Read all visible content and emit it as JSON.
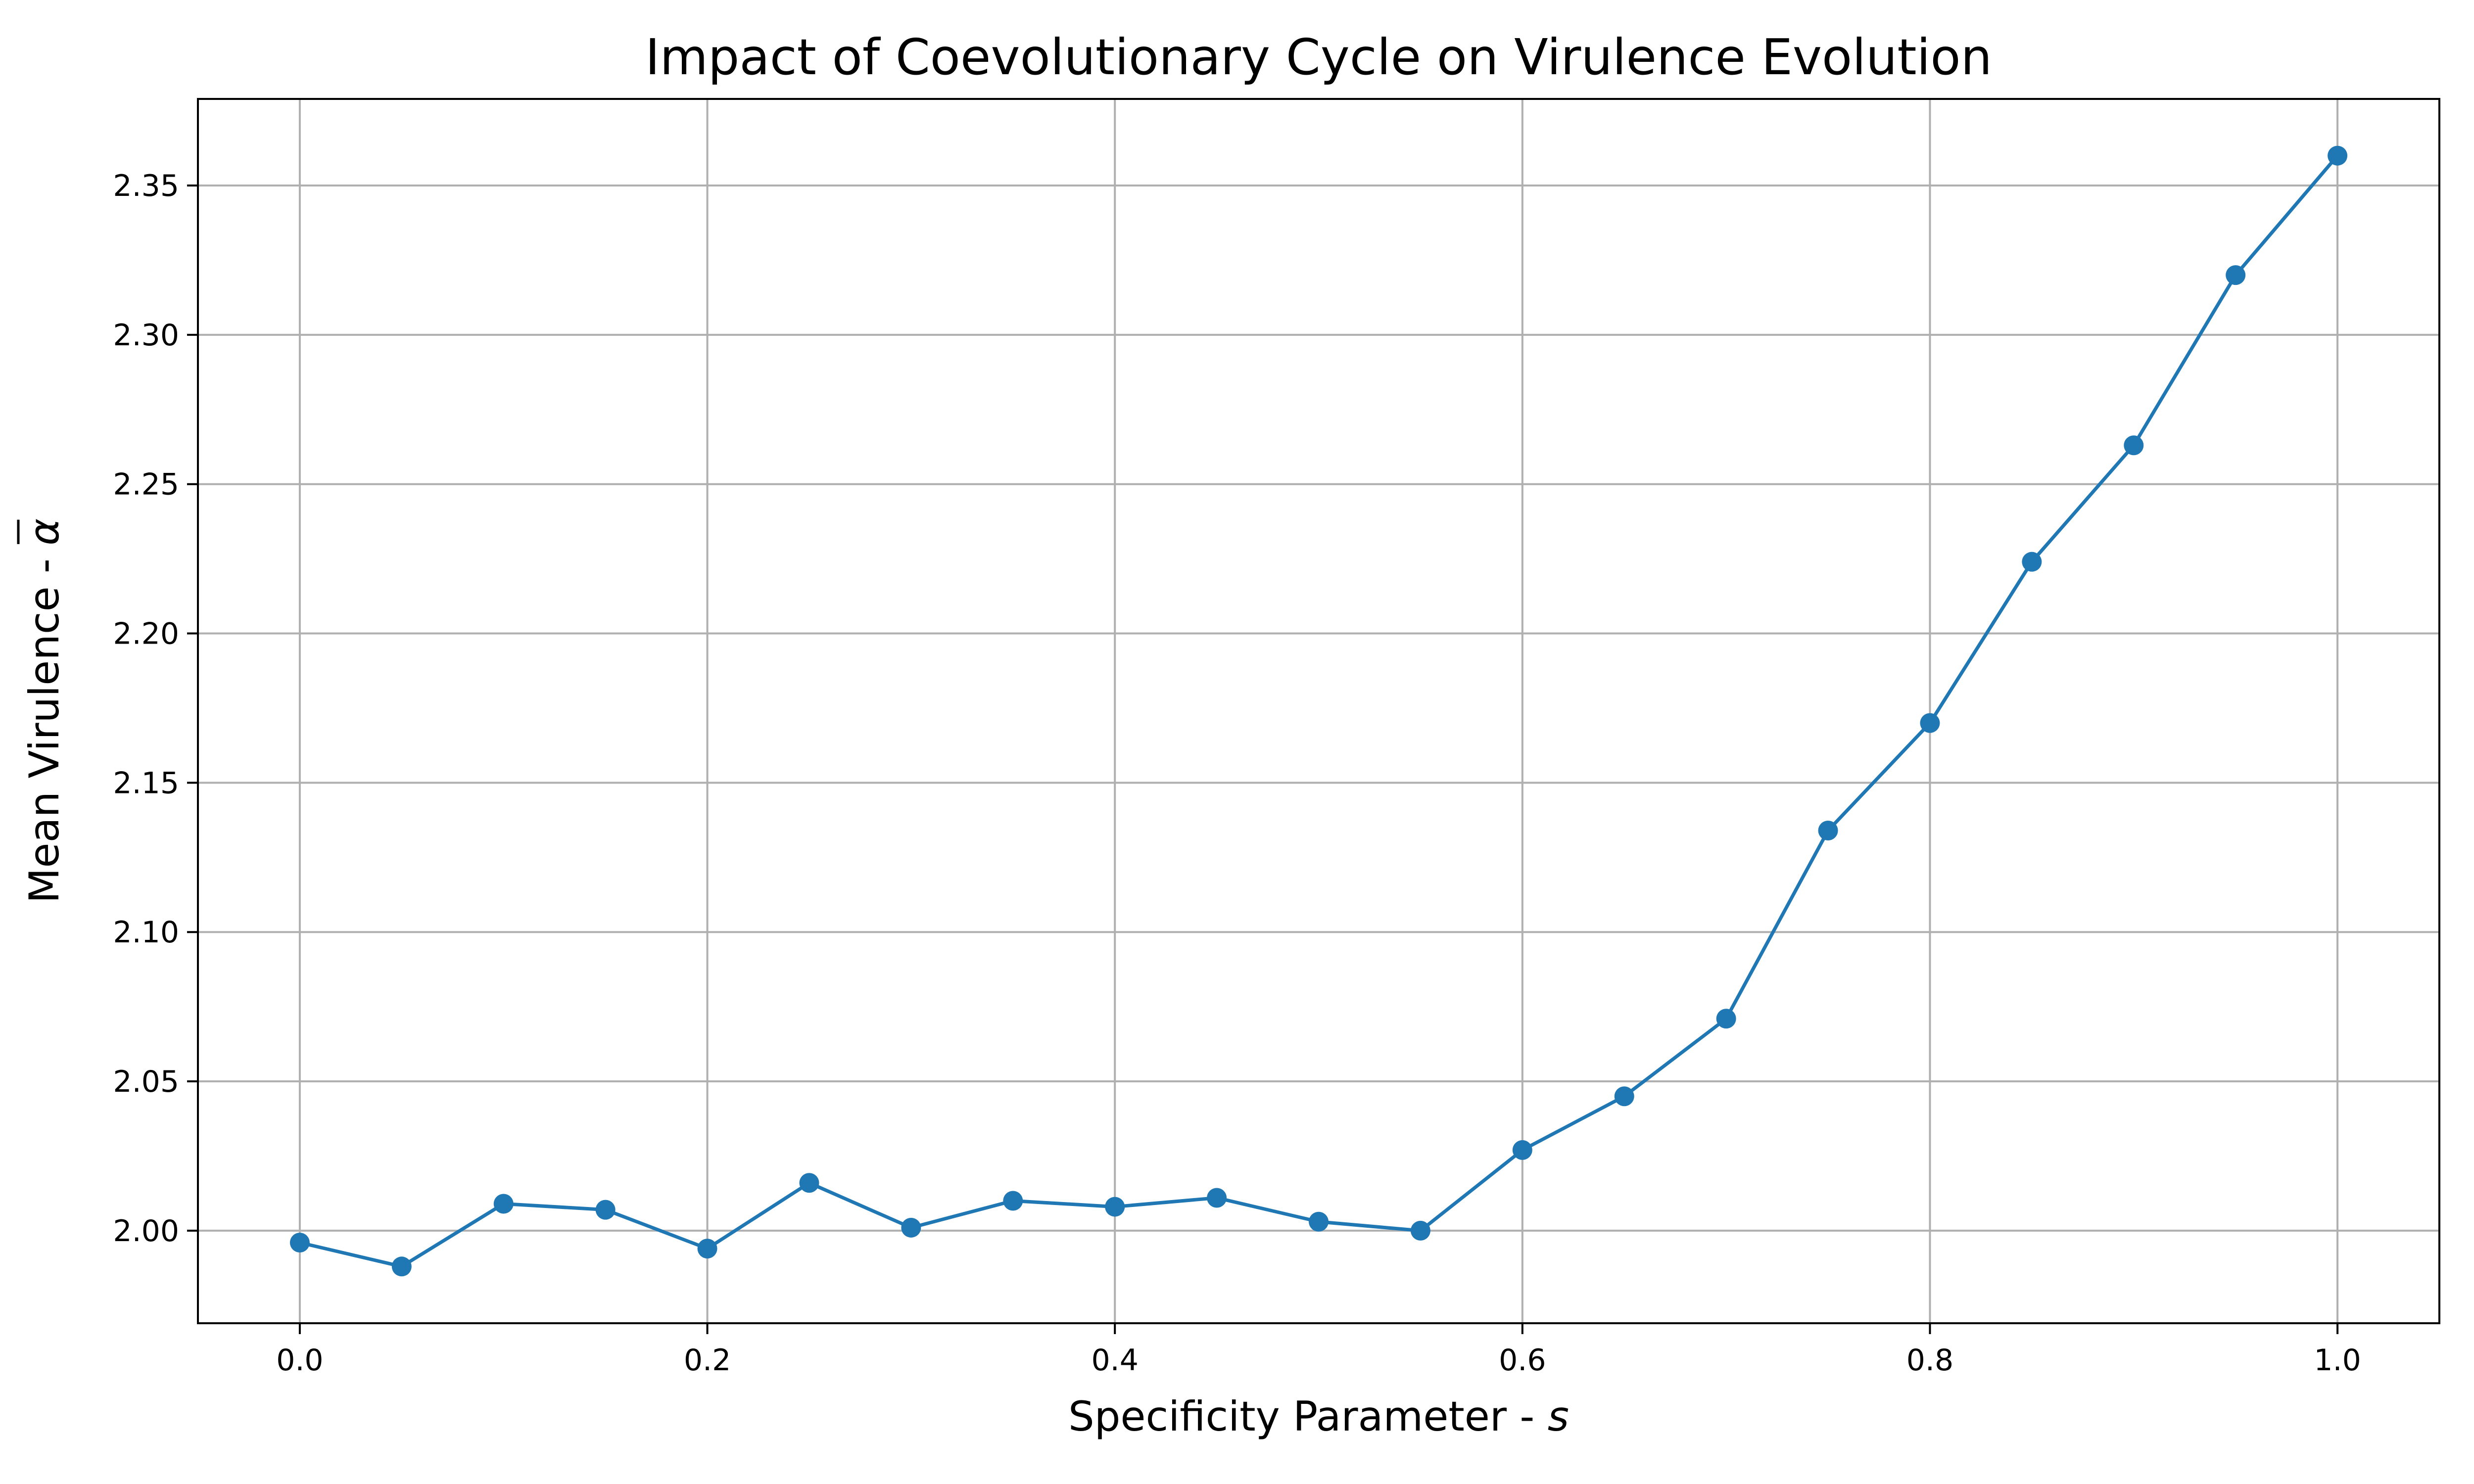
{
  "chart_data": {
    "type": "line",
    "title": "Impact of Coevolutionary Cycle on Virulence Evolution",
    "xlabel": "Specificity Parameter - ",
    "xlabel_var": "s",
    "ylabel": "Mean Virulence - ",
    "ylabel_var": "α",
    "xlim": [
      -0.05,
      1.05
    ],
    "ylim": [
      1.969,
      2.379
    ],
    "x_ticks": [
      0.0,
      0.2,
      0.4,
      0.6,
      0.8,
      1.0
    ],
    "x_tick_labels": [
      "0.0",
      "0.2",
      "0.4",
      "0.6",
      "0.8",
      "1.0"
    ],
    "y_ticks": [
      2.0,
      2.05,
      2.1,
      2.15,
      2.2,
      2.25,
      2.3,
      2.35
    ],
    "y_tick_labels": [
      "2.00",
      "2.05",
      "2.10",
      "2.15",
      "2.20",
      "2.25",
      "2.30",
      "2.35"
    ],
    "grid": true,
    "color": "#1f77b4",
    "series": [
      {
        "x": [
          0.0,
          0.05,
          0.1,
          0.15,
          0.2,
          0.25,
          0.3,
          0.35,
          0.4,
          0.45,
          0.5,
          0.55,
          0.6,
          0.65,
          0.7,
          0.75,
          0.8,
          0.85,
          0.9,
          0.95,
          1.0
        ],
        "values": [
          1.996,
          1.988,
          2.009,
          2.007,
          1.994,
          2.016,
          2.001,
          2.01,
          2.008,
          2.011,
          2.003,
          2.0,
          2.027,
          2.045,
          2.071,
          2.134,
          2.17,
          2.224,
          2.263,
          2.32,
          2.36
        ]
      }
    ]
  }
}
